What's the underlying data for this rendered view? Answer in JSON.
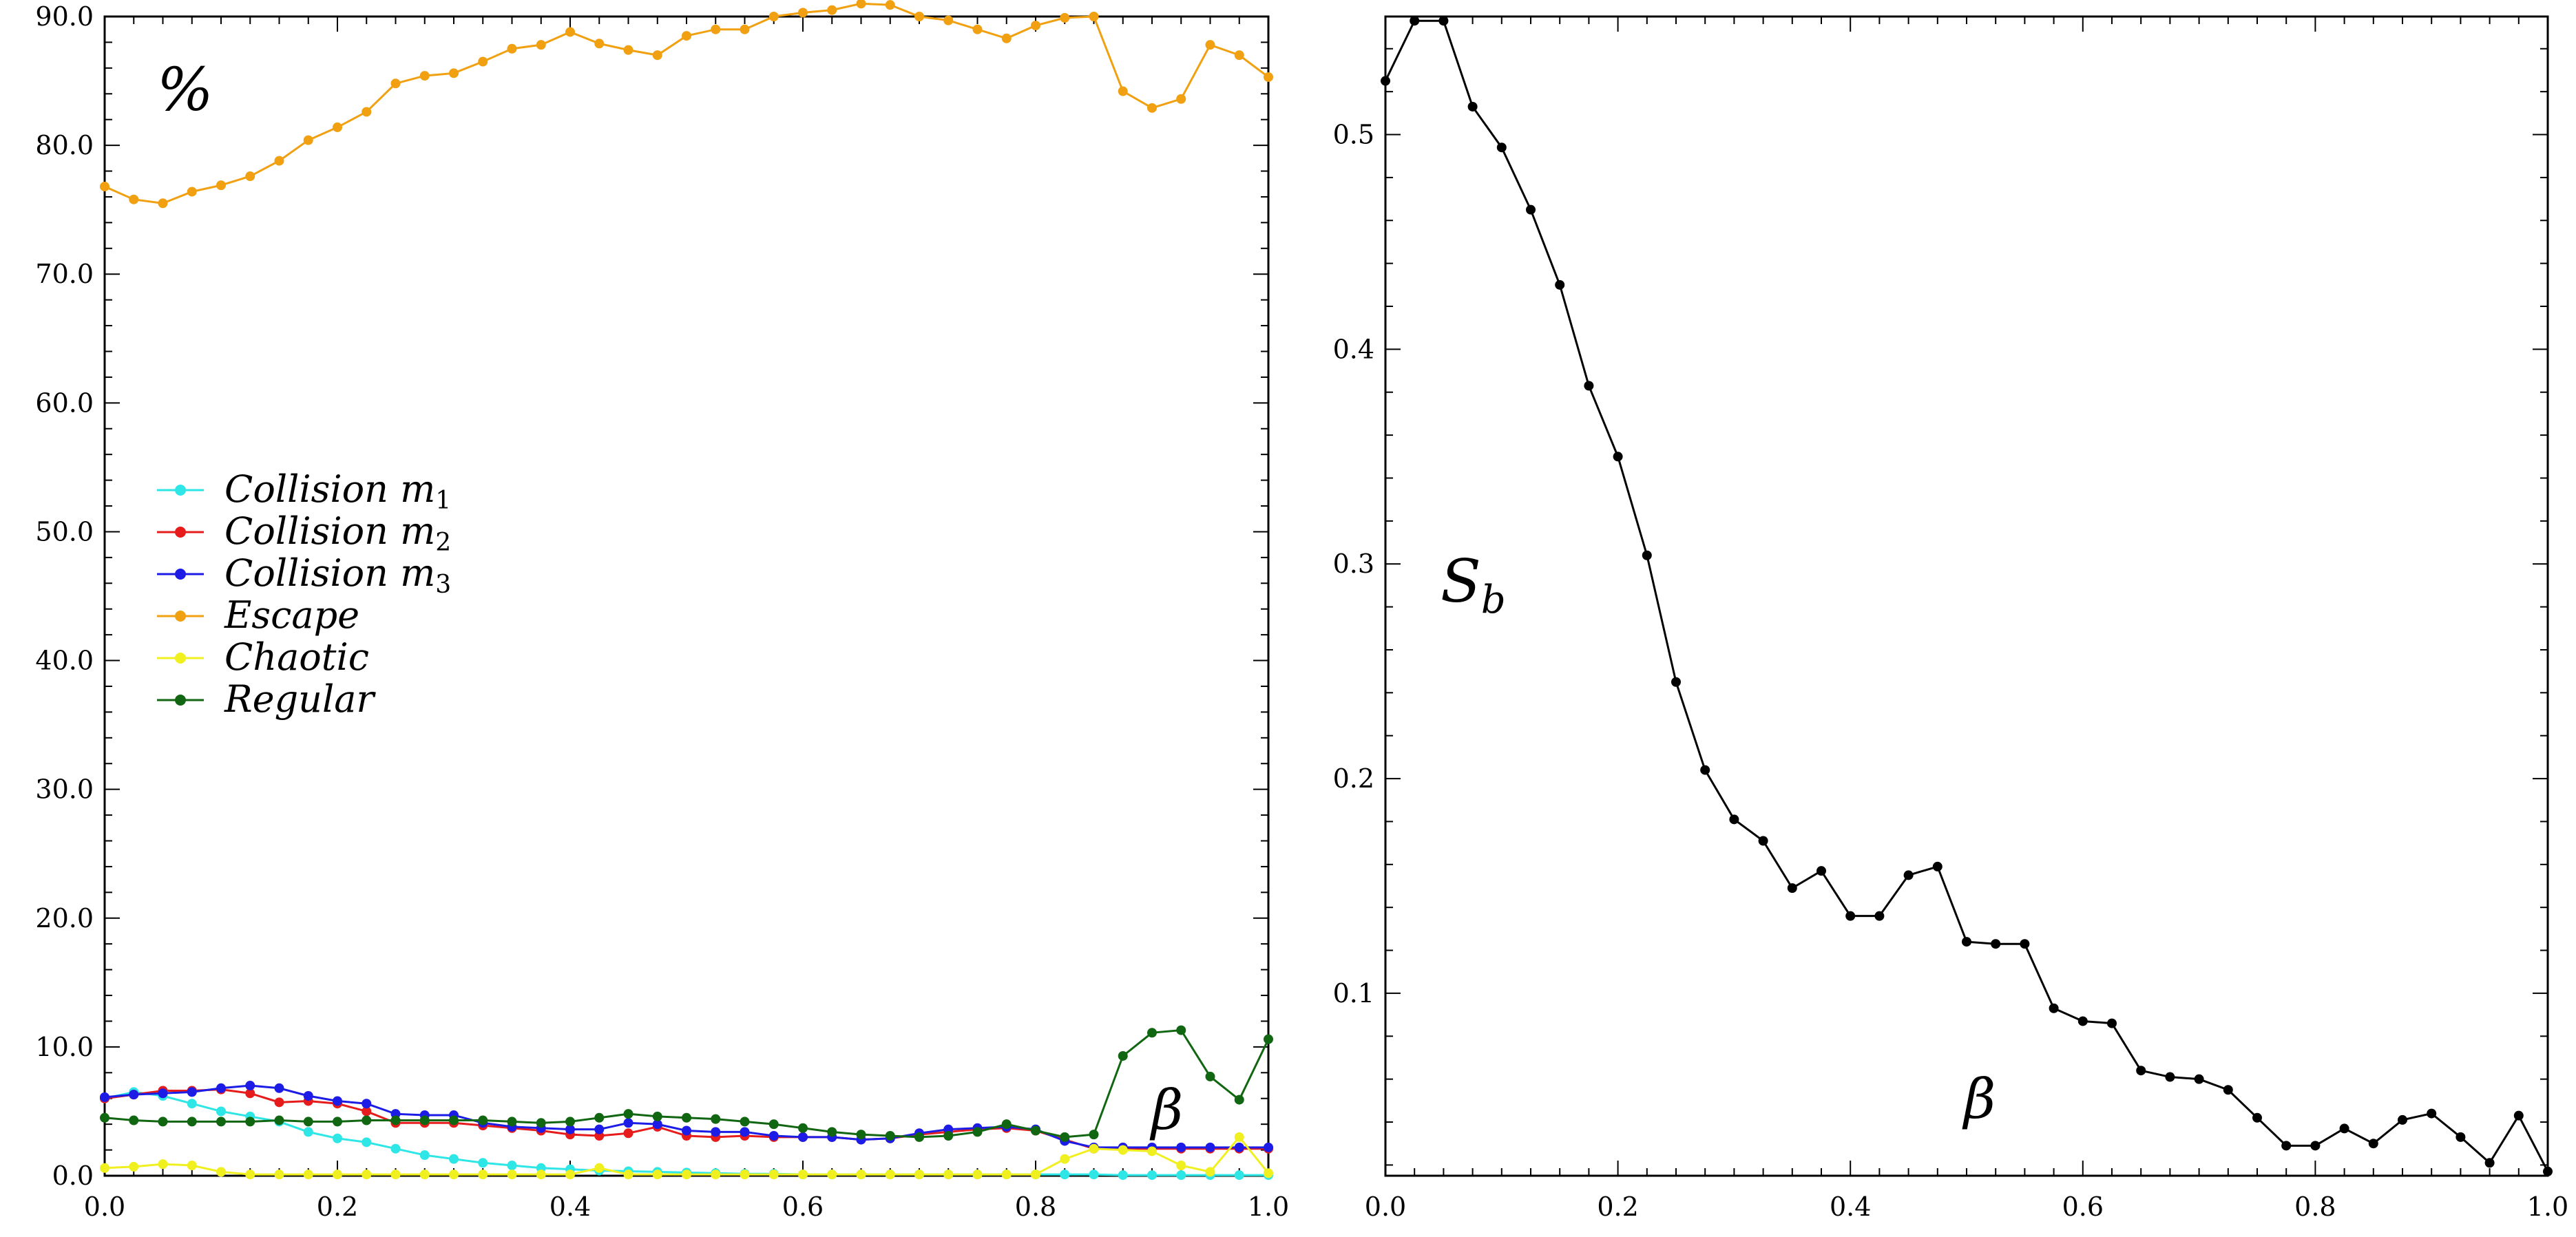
{
  "chart_data": [
    {
      "type": "line",
      "xlim": [
        0.0,
        1.0
      ],
      "ylim": [
        0.0,
        90.0
      ],
      "xticks": [
        "0.0",
        "0.2",
        "0.4",
        "0.6",
        "0.8",
        "1.0"
      ],
      "yticks": [
        "0.0",
        "10.0",
        "20.0",
        "30.0",
        "40.0",
        "50.0",
        "60.0",
        "70.0",
        "80.0",
        "90.0"
      ],
      "ylabel": "%",
      "xlabel": "β",
      "legend_position": "center-left",
      "x": [
        0.0,
        0.025,
        0.05,
        0.075,
        0.1,
        0.125,
        0.15,
        0.175,
        0.2,
        0.225,
        0.25,
        0.275,
        0.3,
        0.325,
        0.35,
        0.375,
        0.4,
        0.425,
        0.45,
        0.475,
        0.5,
        0.525,
        0.55,
        0.575,
        0.6,
        0.625,
        0.65,
        0.675,
        0.7,
        0.725,
        0.75,
        0.775,
        0.8,
        0.825,
        0.85,
        0.875,
        0.9,
        0.925,
        0.95,
        0.975,
        1.0
      ],
      "series": [
        {
          "name": "Collision",
          "subscript": "1",
          "color": "#2ee6e6",
          "values": [
            6.0,
            6.5,
            6.2,
            5.6,
            5.0,
            4.6,
            4.2,
            3.4,
            2.9,
            2.6,
            2.1,
            1.6,
            1.3,
            1.0,
            0.8,
            0.6,
            0.5,
            0.4,
            0.35,
            0.3,
            0.25,
            0.2,
            0.15,
            0.15,
            0.1,
            0.1,
            0.1,
            0.1,
            0.1,
            0.1,
            0.1,
            0.1,
            0.1,
            0.1,
            0.1,
            0.05,
            0.05,
            0.05,
            0.05,
            0.05,
            0.05
          ]
        },
        {
          "name": "Collision",
          "subscript": "2",
          "color": "#e61c1c",
          "values": [
            6.0,
            6.3,
            6.6,
            6.6,
            6.7,
            6.4,
            5.7,
            5.8,
            5.6,
            5.0,
            4.1,
            4.1,
            4.1,
            3.9,
            3.7,
            3.5,
            3.2,
            3.1,
            3.3,
            3.8,
            3.1,
            3.0,
            3.1,
            3.0,
            3.0,
            3.0,
            2.8,
            2.9,
            3.2,
            3.4,
            3.6,
            3.7,
            3.5,
            2.8,
            2.1,
            2.1,
            2.1,
            2.1,
            2.1,
            2.1,
            2.1
          ]
        },
        {
          "name": "Collision",
          "subscript": "3",
          "color": "#1c1ce6",
          "values": [
            6.1,
            6.3,
            6.4,
            6.5,
            6.8,
            7.0,
            6.8,
            6.2,
            5.8,
            5.6,
            4.8,
            4.7,
            4.7,
            4.1,
            3.8,
            3.7,
            3.6,
            3.6,
            4.1,
            4.0,
            3.5,
            3.4,
            3.4,
            3.1,
            3.0,
            3.0,
            2.8,
            2.9,
            3.3,
            3.6,
            3.7,
            3.8,
            3.6,
            2.7,
            2.2,
            2.2,
            2.2,
            2.2,
            2.2,
            2.2,
            2.2
          ]
        },
        {
          "name": "Escape",
          "subscript": "",
          "color": "#f0a010",
          "values": [
            76.8,
            75.8,
            75.5,
            76.4,
            76.9,
            77.6,
            78.8,
            80.4,
            81.4,
            82.6,
            84.8,
            85.4,
            85.6,
            86.5,
            87.5,
            87.8,
            88.8,
            87.9,
            87.4,
            87.0,
            88.5,
            89.0,
            89.0,
            90.0,
            90.3,
            90.5,
            91.0,
            90.9,
            90.0,
            89.7,
            89.0,
            88.3,
            89.3,
            89.9,
            90.0,
            84.2,
            82.9,
            83.6,
            87.8,
            87.0,
            85.3
          ]
        },
        {
          "name": "Chaotic",
          "subscript": "",
          "color": "#f0f020",
          "values": [
            0.6,
            0.7,
            0.9,
            0.8,
            0.3,
            0.1,
            0.1,
            0.1,
            0.1,
            0.1,
            0.1,
            0.1,
            0.1,
            0.1,
            0.1,
            0.1,
            0.1,
            0.6,
            0.1,
            0.1,
            0.1,
            0.1,
            0.1,
            0.1,
            0.1,
            0.1,
            0.1,
            0.1,
            0.1,
            0.1,
            0.1,
            0.1,
            0.1,
            1.3,
            2.1,
            2.0,
            1.9,
            0.8,
            0.3,
            3.0,
            0.2
          ]
        },
        {
          "name": "Regular",
          "subscript": "",
          "color": "#116611",
          "values": [
            4.5,
            4.3,
            4.2,
            4.2,
            4.2,
            4.2,
            4.3,
            4.2,
            4.2,
            4.3,
            4.3,
            4.3,
            4.3,
            4.3,
            4.2,
            4.1,
            4.2,
            4.5,
            4.8,
            4.6,
            4.5,
            4.4,
            4.2,
            4.0,
            3.7,
            3.4,
            3.2,
            3.1,
            3.0,
            3.1,
            3.4,
            4.0,
            3.5,
            3.0,
            3.2,
            9.3,
            11.1,
            11.3,
            7.7,
            5.9,
            10.6
          ]
        }
      ]
    },
    {
      "type": "line",
      "xlim": [
        0.0,
        1.0
      ],
      "ylim": [
        0.015,
        0.555
      ],
      "xticks": [
        "0.0",
        "0.2",
        "0.4",
        "0.6",
        "0.8",
        "1.0"
      ],
      "yticks": [
        "0.1",
        "0.2",
        "0.3",
        "0.4",
        "0.5"
      ],
      "ytick_values": [
        0.1,
        0.2,
        0.3,
        0.4,
        0.5
      ],
      "ylabel": "S",
      "ylabel_subscript": "b",
      "xlabel": "β",
      "x": [
        0.0,
        0.025,
        0.05,
        0.075,
        0.1,
        0.125,
        0.15,
        0.175,
        0.2,
        0.225,
        0.25,
        0.275,
        0.3,
        0.325,
        0.35,
        0.375,
        0.4,
        0.425,
        0.45,
        0.475,
        0.5,
        0.525,
        0.55,
        0.575,
        0.6,
        0.625,
        0.65,
        0.675,
        0.7,
        0.725,
        0.75,
        0.775,
        0.8,
        0.825,
        0.85,
        0.875,
        0.9,
        0.925,
        0.95,
        0.975,
        1.0
      ],
      "series": [
        {
          "color": "#000000",
          "values": [
            0.525,
            0.553,
            0.553,
            0.513,
            0.494,
            0.465,
            0.43,
            0.383,
            0.35,
            0.304,
            0.245,
            0.204,
            0.181,
            0.171,
            0.149,
            0.157,
            0.136,
            0.136,
            0.155,
            0.159,
            0.124,
            0.123,
            0.123,
            0.093,
            0.087,
            0.086,
            0.064,
            0.061,
            0.06,
            0.055,
            0.042,
            0.029,
            0.029,
            0.037,
            0.03,
            0.041,
            0.044,
            0.033,
            0.021,
            0.043,
            0.017
          ]
        }
      ]
    }
  ]
}
